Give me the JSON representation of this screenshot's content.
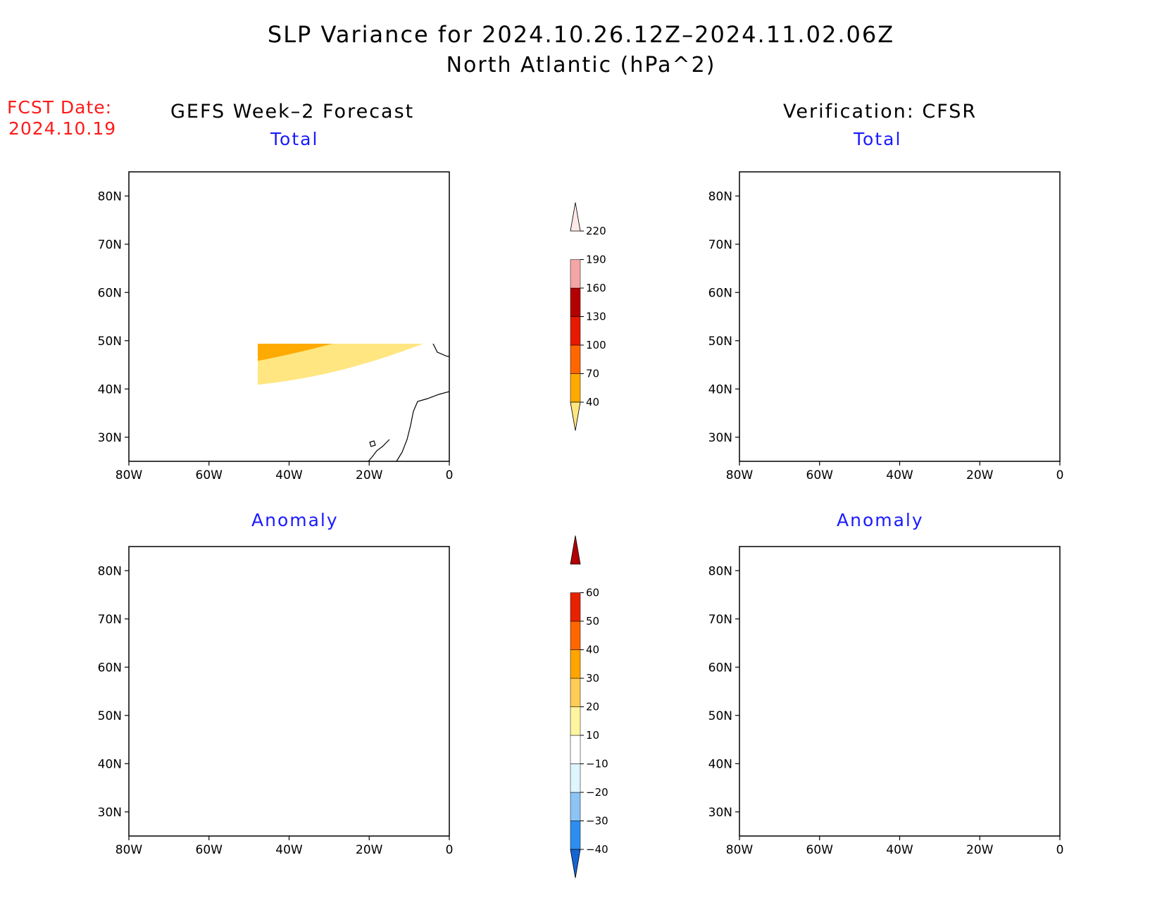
{
  "figure": {
    "title_line1": "SLP Variance for 2024.10.26.12Z–2024.11.02.06Z",
    "title_line2": "North Atlantic (hPa^2)",
    "fcst_label": "FCST Date:",
    "fcst_date": "2024.10.19",
    "left_column_title": "GEFS Week–2 Forecast",
    "right_column_title": "Verification: CFSR"
  },
  "panels": [
    {
      "id": "forecast-total",
      "title": "Total"
    },
    {
      "id": "verification-total",
      "title": "Total"
    },
    {
      "id": "forecast-anomaly",
      "title": "Anomaly"
    },
    {
      "id": "verification-anomaly",
      "title": "Anomaly"
    }
  ],
  "axes": {
    "lat_labels": [
      "80N",
      "70N",
      "60N",
      "50N",
      "40N",
      "30N"
    ],
    "lon_labels": [
      "80W",
      "60W",
      "40W",
      "20W",
      "0"
    ],
    "lat_values": [
      80,
      70,
      60,
      50,
      40,
      30
    ],
    "lon_values": [
      -80,
      -60,
      -40,
      -20,
      0
    ],
    "lat_range": [
      25,
      85
    ],
    "lon_range": [
      -80,
      0
    ]
  },
  "colorbar_total": {
    "labels": [
      "40",
      "70",
      "100",
      "130",
      "160",
      "190",
      "220"
    ],
    "colors": [
      "#ffe680",
      "#ffaa00",
      "#ff6600",
      "#e61a00",
      "#b30000",
      "#f4a6a6",
      "#ffe8e8"
    ]
  },
  "colorbar_anomaly": {
    "labels": [
      "−40",
      "−30",
      "−20",
      "−10",
      "10",
      "20",
      "30",
      "40",
      "50",
      "60"
    ],
    "colors": [
      "#1465d4",
      "#2d8ef0",
      "#8cc4f5",
      "#dff5ff",
      "#ffffff",
      "#fff5a0",
      "#ffcc55",
      "#ffa500",
      "#ff6600",
      "#e62200",
      "#b30000"
    ]
  }
}
